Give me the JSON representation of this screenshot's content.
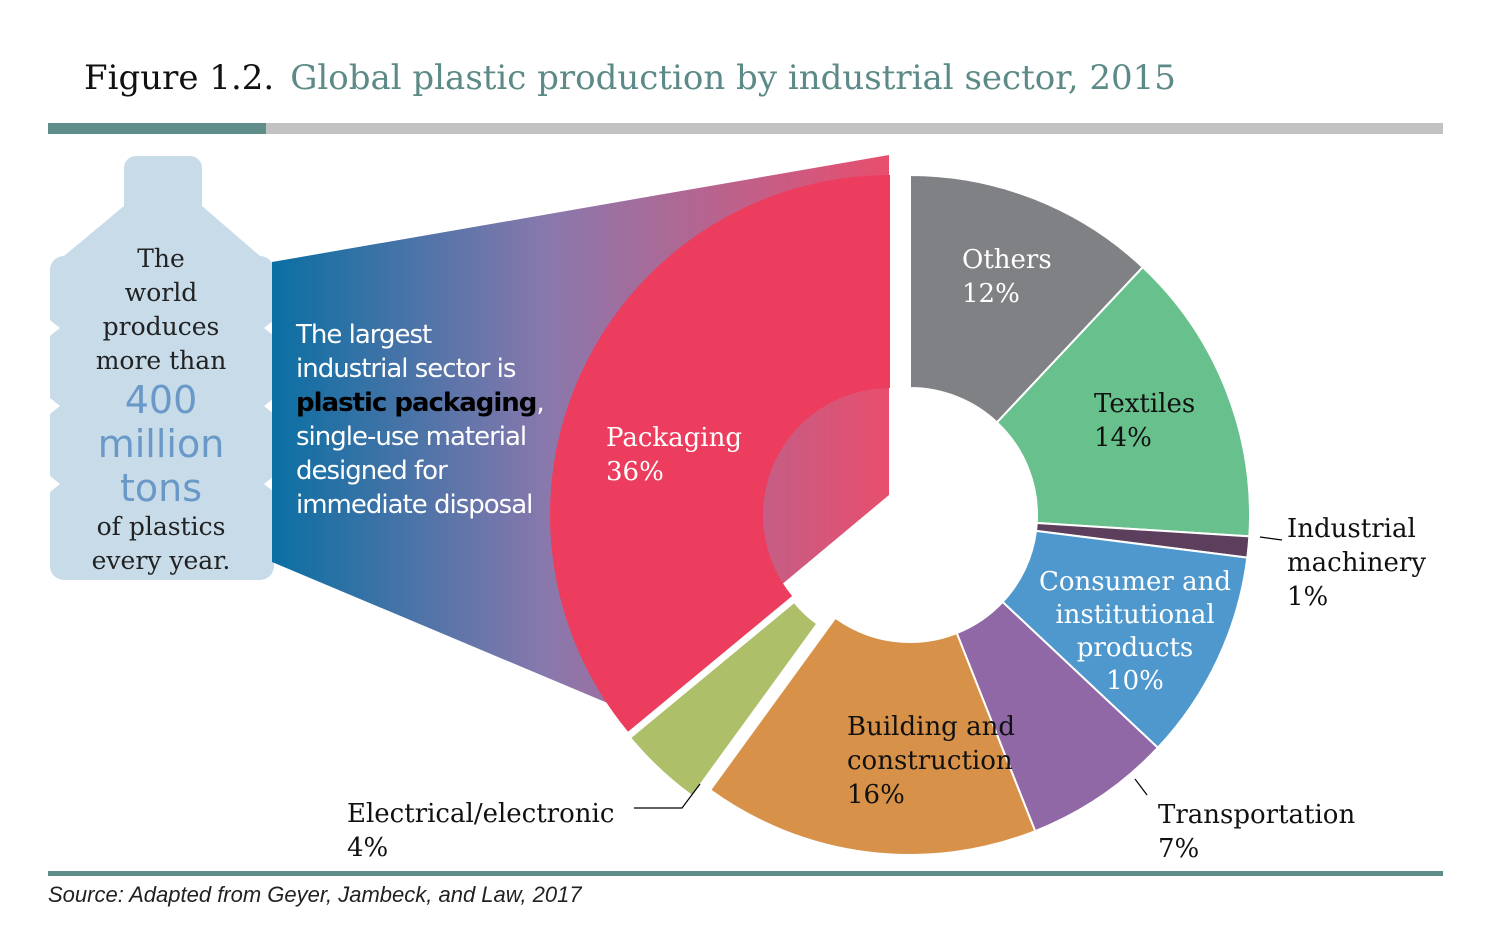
{
  "figure": {
    "label": "Figure  1.2.",
    "title": "Global plastic production by industrial sector, 2015",
    "source": "Source:   Adapted from Geyer, Jambeck, and Law, 2017"
  },
  "bottle": {
    "line1": "The",
    "line2": "world",
    "line3": "produces",
    "line4": "more than",
    "big1": "400",
    "big2": "million",
    "big3": "tons",
    "line5": "of plastics",
    "line6": "every year."
  },
  "callout": {
    "pre": "The largest industrial sector is ",
    "emphasis": "plastic packaging",
    "post": ", single-use material designed for immediate disposal"
  },
  "colors": {
    "Packaging": "#ec3d5e",
    "Others": "#808184",
    "Textiles": "#68c08d",
    "Industrial machinery": "#5c3f5c",
    "Consumer and institutional products": "#4f98cd",
    "Transportation": "#8f68a5",
    "Building and construction": "#d79148",
    "Electrical/electronic": "#aebf6a"
  },
  "chart_data": {
    "type": "pie",
    "title": "Global plastic production by industrial sector, 2015",
    "categories": [
      "Packaging",
      "Others",
      "Textiles",
      "Industrial machinery",
      "Consumer and institutional products",
      "Transportation",
      "Building and construction",
      "Electrical/electronic"
    ],
    "values": [
      36,
      12,
      14,
      1,
      10,
      7,
      16,
      4
    ],
    "unit": "%",
    "labels": [
      {
        "lines": [
          "Packaging",
          "36%"
        ]
      },
      {
        "lines": [
          "Others",
          "12%"
        ]
      },
      {
        "lines": [
          "Textiles",
          "14%"
        ]
      },
      {
        "lines": [
          "Industrial",
          "machinery",
          "1%"
        ]
      },
      {
        "lines": [
          "Consumer and",
          "institutional",
          "products",
          "10%"
        ]
      },
      {
        "lines": [
          "Transportation",
          "7%"
        ]
      },
      {
        "lines": [
          "Building and",
          "construction",
          "16%"
        ]
      },
      {
        "lines": [
          "Electrical/electronic",
          "4%"
        ]
      }
    ]
  }
}
